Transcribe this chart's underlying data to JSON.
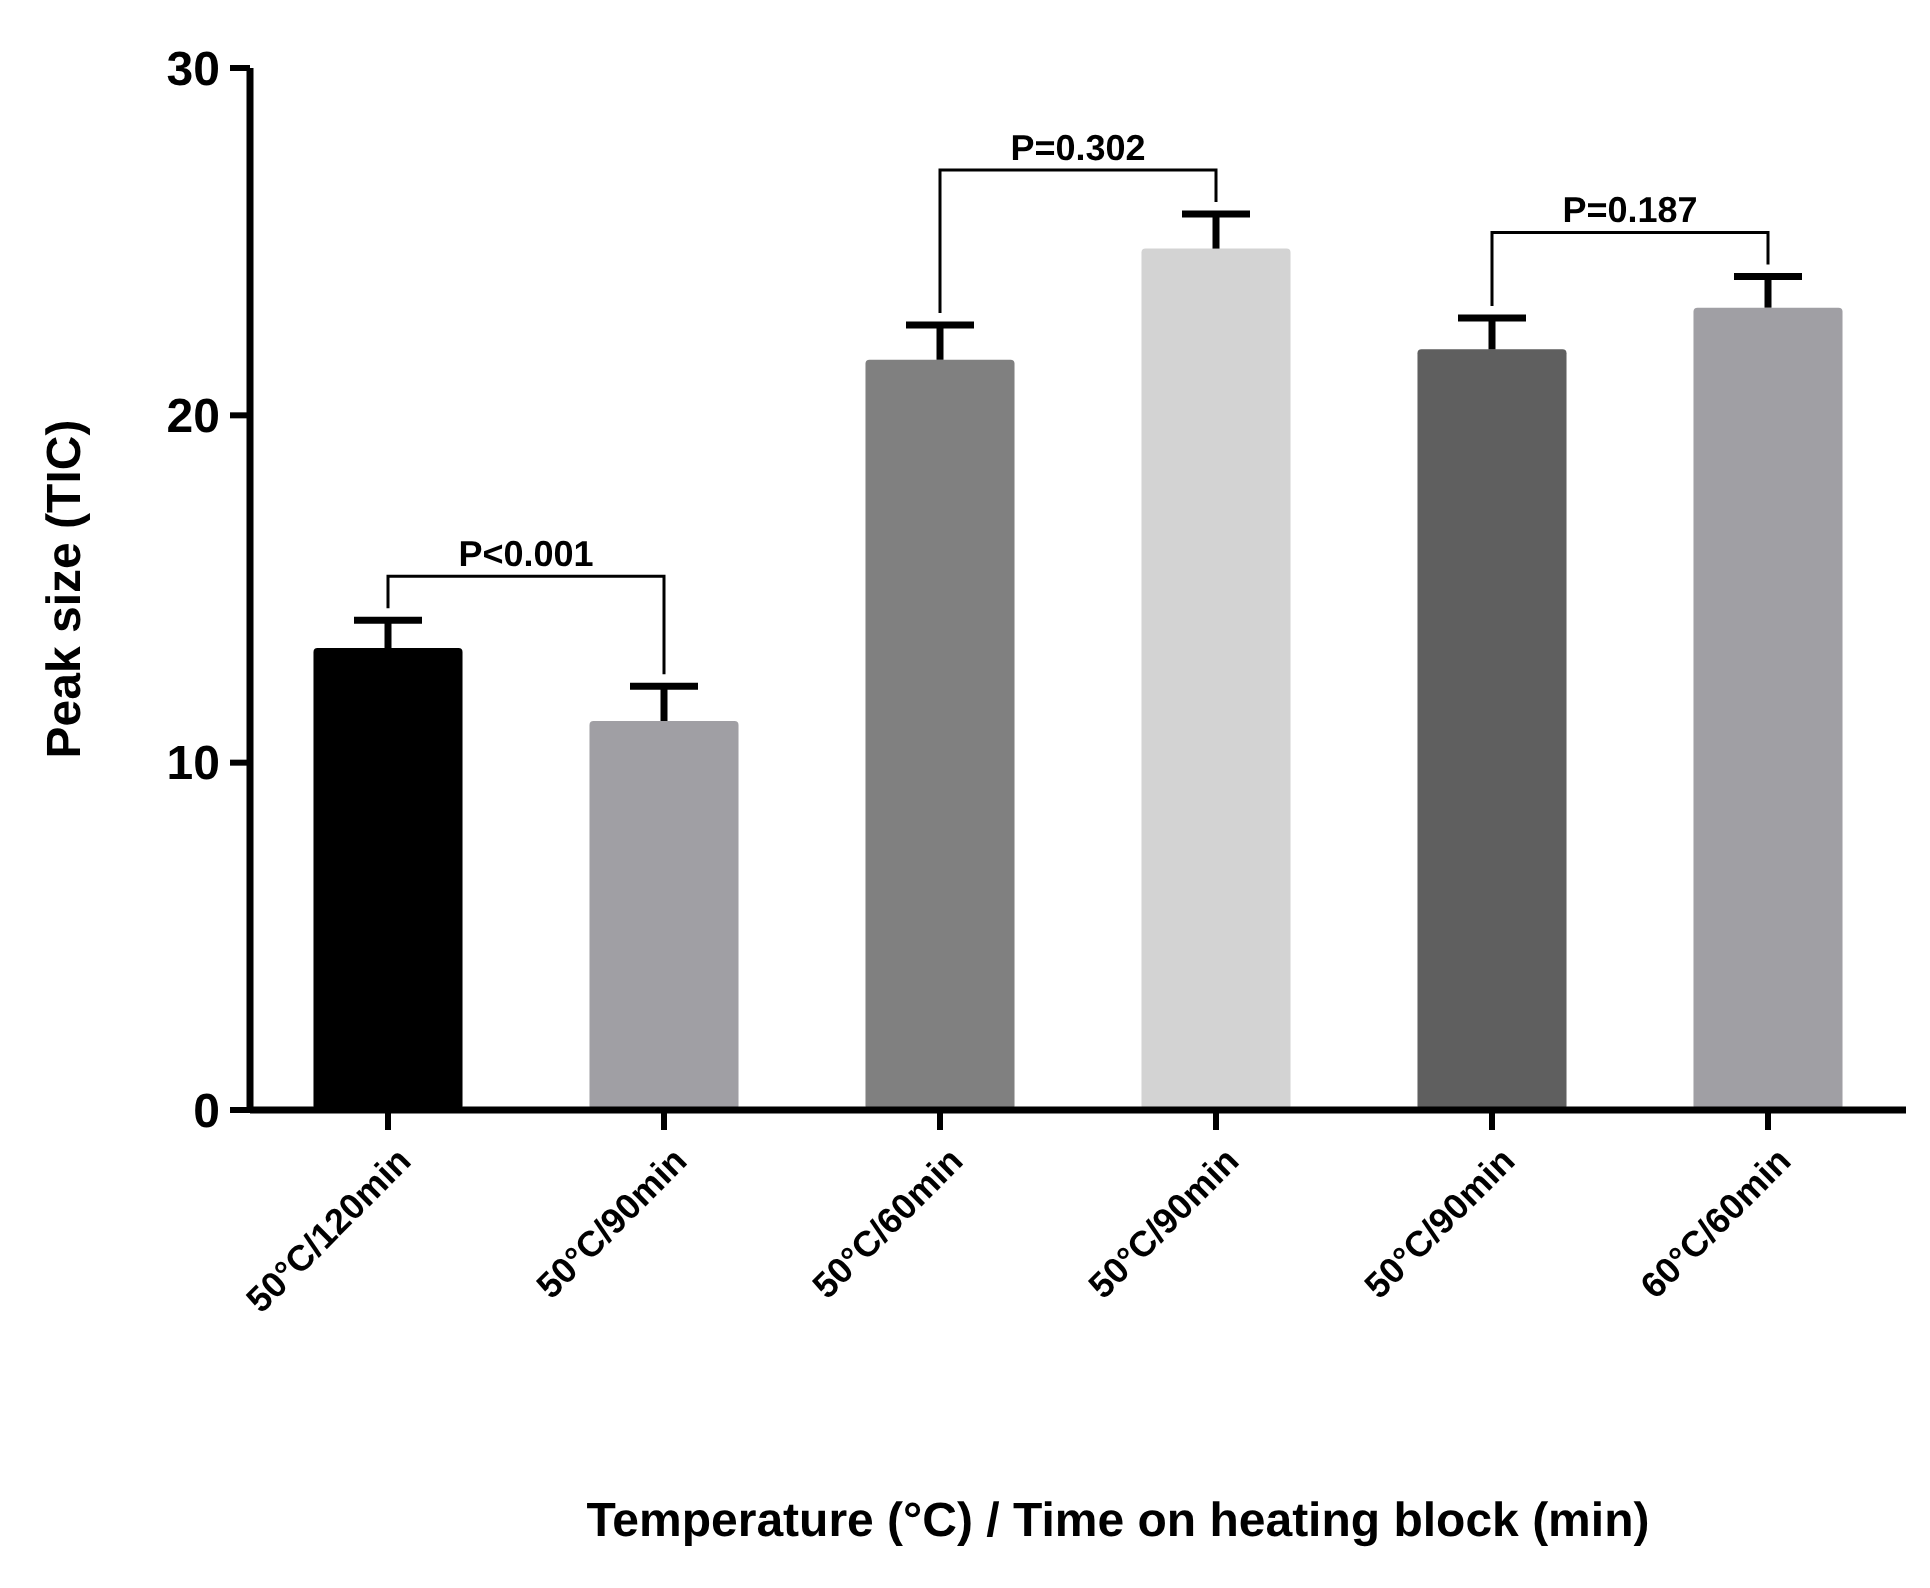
{
  "chart_data": {
    "type": "bar",
    "xlabel": "Temperature (°C) / Time on heating block (min)",
    "ylabel": "Peak size (TIC)",
    "categories": [
      "50°C/120min",
      "50°C/90min",
      "50°C/60min",
      "50°C/90min",
      "50°C/90min",
      "60°C/60min"
    ],
    "values": [
      13.3,
      11.2,
      21.6,
      24.8,
      21.9,
      23.1
    ],
    "colors": [
      "#000000",
      "#a09fa4",
      "#808080",
      "#d3d3d3",
      "#5f5f5f",
      "#a09fa4"
    ],
    "errors": [
      [
        13.3,
        14.1
      ],
      [
        11.2,
        12.2
      ],
      [
        21.6,
        22.6
      ],
      [
        24.8,
        25.8
      ],
      [
        21.9,
        22.8
      ],
      [
        23.1,
        24.0
      ]
    ],
    "ylim": [
      0,
      30
    ],
    "yticks": [
      0,
      10,
      20,
      30
    ],
    "grid": false,
    "annotations": [
      "P<0.001",
      "P=0.302",
      "P=0.187"
    ]
  }
}
